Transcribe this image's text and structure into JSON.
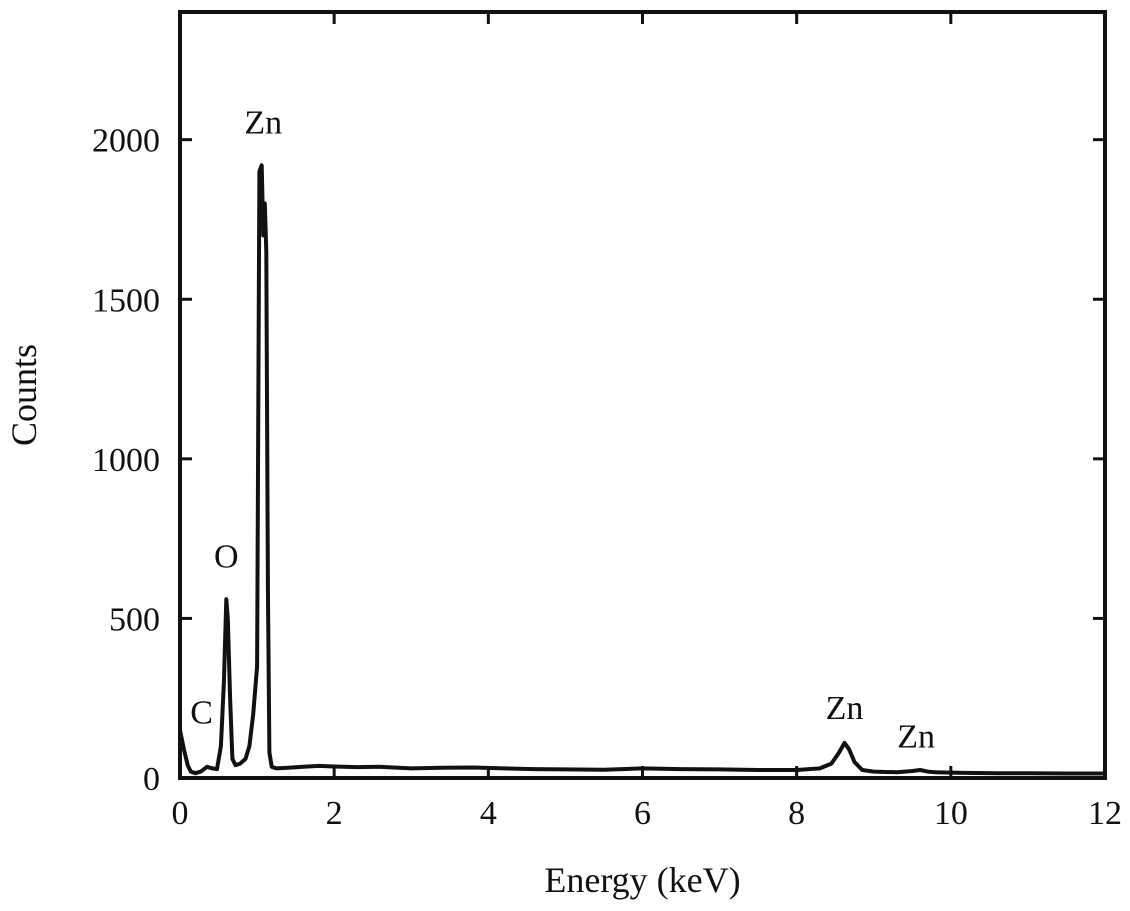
{
  "chart_data": {
    "type": "line",
    "title": "",
    "xlabel": "Energy (keV)",
    "ylabel": "Counts",
    "xlim": [
      0,
      12
    ],
    "ylim": [
      0,
      2400
    ],
    "xticks": [
      0,
      2,
      4,
      6,
      8,
      10,
      12
    ],
    "yticks": [
      0,
      500,
      1000,
      1500,
      2000
    ],
    "grid": false,
    "line_color": "#111111",
    "series": [
      {
        "x": [
          0.0,
          0.05,
          0.1,
          0.14,
          0.2,
          0.27,
          0.35,
          0.42,
          0.48,
          0.53,
          0.57,
          0.6,
          0.62,
          0.65,
          0.68,
          0.72,
          0.78,
          0.85,
          0.9,
          0.95,
          1.0,
          1.03,
          1.06,
          1.08,
          1.1,
          1.12,
          1.14,
          1.16,
          1.19,
          1.25,
          1.4,
          1.6,
          1.8,
          2.0,
          2.3,
          2.6,
          3.0,
          3.4,
          3.8,
          4.2,
          4.6,
          5.0,
          5.5,
          6.0,
          6.5,
          7.0,
          7.5,
          8.0,
          8.3,
          8.45,
          8.55,
          8.62,
          8.68,
          8.75,
          8.85,
          9.0,
          9.3,
          9.5,
          9.6,
          9.7,
          9.8,
          10.0,
          10.2,
          10.6,
          11.0,
          11.5,
          12.0
        ],
        "values": [
          150,
          90,
          40,
          20,
          15,
          20,
          35,
          30,
          28,
          100,
          300,
          560,
          500,
          250,
          60,
          40,
          45,
          60,
          100,
          200,
          350,
          1900,
          1920,
          1700,
          1800,
          1650,
          600,
          80,
          35,
          30,
          32,
          35,
          38,
          36,
          34,
          35,
          30,
          32,
          33,
          30,
          28,
          27,
          26,
          30,
          28,
          27,
          25,
          25,
          30,
          45,
          80,
          110,
          90,
          50,
          25,
          20,
          18,
          22,
          25,
          20,
          18,
          17,
          16,
          15,
          15,
          14,
          14
        ]
      }
    ],
    "annotations": [
      {
        "text": "C",
        "x": 0.28,
        "y": 170
      },
      {
        "text": "O",
        "x": 0.6,
        "y": 660
      },
      {
        "text": "Zn",
        "x": 1.08,
        "y": 2020
      },
      {
        "text": "Zn",
        "x": 8.62,
        "y": 185
      },
      {
        "text": "Zn",
        "x": 9.55,
        "y": 95
      }
    ]
  }
}
